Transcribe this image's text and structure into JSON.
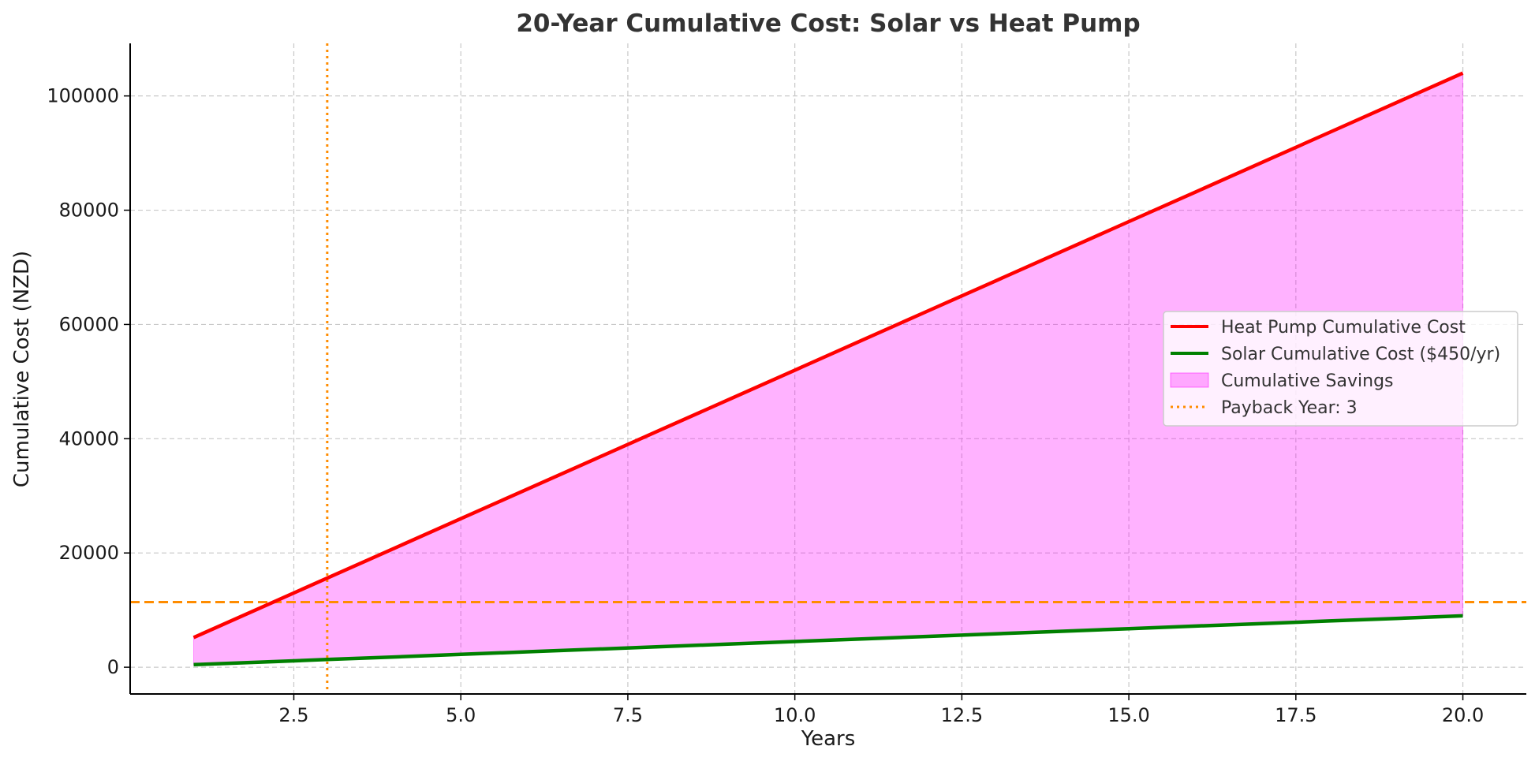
{
  "chart_data": {
    "type": "line",
    "title": "20-Year Cumulative Cost: Solar vs Heat Pump",
    "xlabel": "Years",
    "ylabel": "Cumulative Cost (NZD)",
    "xlim": [
      0.05,
      20.95
    ],
    "ylim": [
      -4680,
      109200
    ],
    "xticks": [
      2.5,
      5.0,
      7.5,
      10.0,
      12.5,
      15.0,
      17.5,
      20.0
    ],
    "xtick_labels": [
      "2.5",
      "5.0",
      "7.5",
      "10.0",
      "12.5",
      "15.0",
      "17.5",
      "20.0"
    ],
    "yticks": [
      0,
      20000,
      40000,
      60000,
      80000,
      100000
    ],
    "ytick_labels": [
      "0",
      "20000",
      "40000",
      "60000",
      "80000",
      "100000"
    ],
    "grid": true,
    "legend_position": "center-right",
    "x": [
      1,
      2,
      3,
      4,
      5,
      6,
      7,
      8,
      9,
      10,
      11,
      12,
      13,
      14,
      15,
      16,
      17,
      18,
      19,
      20
    ],
    "series": [
      {
        "name": "Heat Pump Cumulative Cost",
        "color": "#ff0000",
        "style": "solid",
        "values": [
          5200,
          10400,
          15600,
          20800,
          26000,
          31200,
          36400,
          41600,
          46800,
          52000,
          57200,
          62400,
          67600,
          72800,
          78000,
          83200,
          88400,
          93600,
          98800,
          104000
        ]
      },
      {
        "name": "Solar Cumulative Cost ($450/yr)",
        "color": "#008000",
        "style": "solid",
        "values": [
          450,
          900,
          1350,
          1800,
          2250,
          2700,
          3150,
          3600,
          4050,
          4500,
          4950,
          5400,
          5850,
          6300,
          6750,
          7200,
          7650,
          8100,
          8550,
          9000
        ]
      }
    ],
    "fill": {
      "name": "Cumulative Savings",
      "color": "#ff00ff",
      "opacity": 0.3,
      "between": [
        "Heat Pump Cumulative Cost",
        "Solar Cumulative Cost ($450/yr)"
      ]
    },
    "vline": {
      "name": "Payback Year: 3",
      "x": 3,
      "color": "#ff8c00",
      "style": "dotted"
    },
    "hline": {
      "y": 11400,
      "color": "#ff8c00",
      "style": "dashed"
    }
  }
}
